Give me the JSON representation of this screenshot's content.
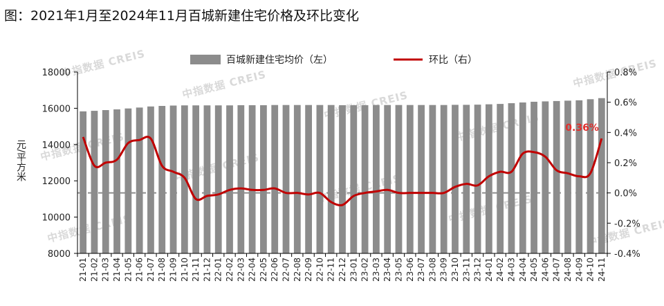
{
  "chart_data": {
    "type": "bar",
    "title": "图：2021年1月至2024年11月百城新建住宅价格及环比变化",
    "ylabel": "元/平方米",
    "categories": [
      "21-01",
      "21-02",
      "21-03",
      "21-04",
      "21-05",
      "21-06",
      "21-07",
      "21-08",
      "21-09",
      "21-10",
      "21-11",
      "21-12",
      "22-01",
      "22-02",
      "22-03",
      "22-04",
      "22-05",
      "22-06",
      "22-07",
      "22-08",
      "22-09",
      "22-10",
      "22-11",
      "22-12",
      "23-01",
      "23-02",
      "23-03",
      "23-04",
      "23-05",
      "23-06",
      "23-07",
      "23-08",
      "23-09",
      "23-10",
      "23-11",
      "23-12",
      "24-01",
      "24-02",
      "24-03",
      "24-04",
      "24-05",
      "24-06",
      "24-07",
      "24-08",
      "24-09",
      "24-10",
      "24-11"
    ],
    "ylim_left": [
      8000,
      18000
    ],
    "yticks_left": [
      "8000",
      "10000",
      "12000",
      "14000",
      "16000",
      "18000"
    ],
    "ylim_right": [
      -0.4,
      0.8
    ],
    "yticks_right": [
      "-0.4%",
      "-0.2%",
      "0.0%",
      "0.2%",
      "0.4%",
      "0.6%",
      "0.8%"
    ],
    "legend_position": "top-center",
    "series": [
      {
        "name": "百城新建住宅均价（左）",
        "type": "bar",
        "axis": "left",
        "color": "#8c8c8c",
        "values": [
          15830,
          15860,
          15900,
          15940,
          15990,
          16040,
          16100,
          16130,
          16150,
          16160,
          16160,
          16160,
          16160,
          16160,
          16170,
          16170,
          16170,
          16180,
          16180,
          16180,
          16180,
          16180,
          16180,
          16170,
          16170,
          16170,
          16180,
          16180,
          16180,
          16180,
          16180,
          16180,
          16180,
          16190,
          16190,
          16200,
          16220,
          16240,
          16280,
          16320,
          16360,
          16380,
          16400,
          16420,
          16440,
          16500,
          16560
        ]
      },
      {
        "name": "环比（右）",
        "type": "line",
        "axis": "right",
        "color": "#c00000",
        "values": [
          0.37,
          0.18,
          0.2,
          0.22,
          0.33,
          0.35,
          0.36,
          0.18,
          0.14,
          0.1,
          -0.04,
          -0.02,
          -0.01,
          0.02,
          0.03,
          0.02,
          0.02,
          0.03,
          0.0,
          0.0,
          -0.01,
          0.0,
          -0.06,
          -0.08,
          -0.02,
          0.0,
          0.01,
          0.02,
          0.0,
          0.0,
          0.0,
          0.0,
          0.0,
          0.04,
          0.06,
          0.05,
          0.11,
          0.14,
          0.14,
          0.26,
          0.27,
          0.24,
          0.15,
          0.13,
          0.11,
          0.13,
          0.36
        ]
      }
    ],
    "annotation": {
      "text": "0.36%",
      "color": "#e0302e"
    },
    "zero_line_dashed": true,
    "grid": false
  },
  "watermark": "中指数据 CREIS"
}
